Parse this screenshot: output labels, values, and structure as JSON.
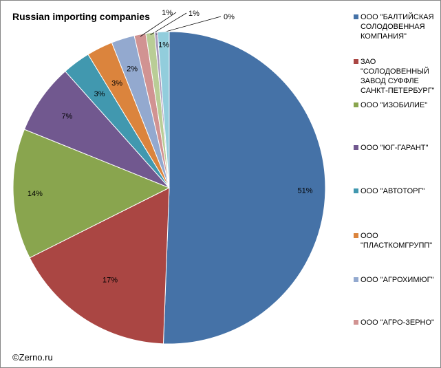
{
  "title": "Russian importing companies",
  "credit": "©Zerno.ru",
  "chart_data": {
    "type": "pie",
    "title": "Russian importing companies",
    "start_angle_deg": 0,
    "direction": "clockwise",
    "legend_placement": "right",
    "slices": [
      {
        "name": "ООО \"БАЛТИЙСКАЯ СОЛОДОВЕННАЯ КОМПАНИЯ\"",
        "value": 50.6,
        "label": "51%",
        "color": "#4572A7"
      },
      {
        "name": "ЗАО \"СОЛОДОВЕННЫЙ ЗАВОД СУФФЛЕ САНКТ-ПЕТЕРБУРГ\"",
        "value": 17.0,
        "label": "17%",
        "color": "#AA4643"
      },
      {
        "name": "ООО \"ИЗОБИЛИЕ\"",
        "value": 13.5,
        "label": "14%",
        "color": "#89A54E"
      },
      {
        "name": "ООО \"ЮГ-ГАРАНТ\"",
        "value": 7.3,
        "label": "7%",
        "color": "#71588F"
      },
      {
        "name": "ООО \"АВТОТОРГ\"",
        "value": 2.9,
        "label": "3%",
        "color": "#4198AF"
      },
      {
        "name": "ООО \"ПЛАСТКОМГРУПП\"",
        "value": 2.7,
        "label": "3%",
        "color": "#DB843D"
      },
      {
        "name": "ООО \"АГРОХИМЮГ\"",
        "value": 2.4,
        "label": "2%",
        "color": "#93A9CF"
      },
      {
        "name": "ООО \"АГРО-ЗЕРНО\"",
        "value": 1.2,
        "label": "1%",
        "color": "#D19392"
      },
      {
        "name": "",
        "value": 0.9,
        "label": "1%",
        "color": "#B9CD96"
      },
      {
        "name": "",
        "value": 0.3,
        "label": "0%",
        "color": "#A99BBD"
      },
      {
        "name": "",
        "value": 1.2,
        "label": "1%",
        "color": "#92CDDC"
      }
    ]
  }
}
